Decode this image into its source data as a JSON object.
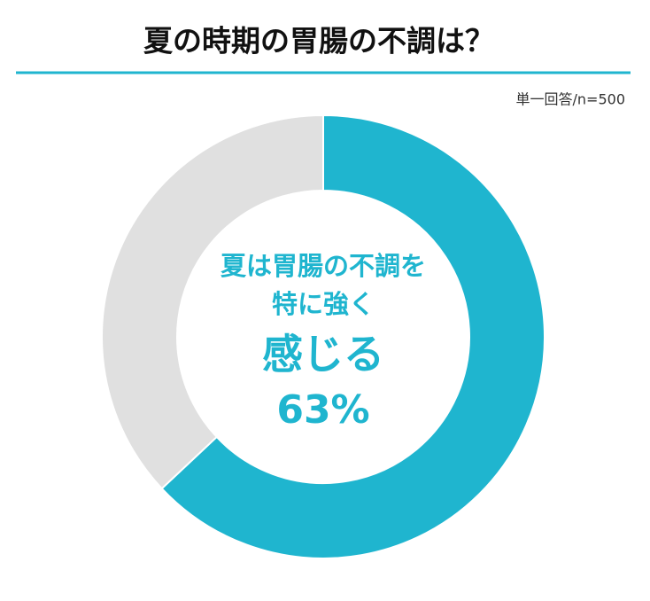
{
  "chart_data": {
    "type": "donut",
    "title": "夏の時期の胃腸の不調は？",
    "subtitle": "単一回答/n=500",
    "annotations": [
      "夏は胃腸の不調を",
      "特に強く",
      "感じる"
    ],
    "categories": [
      null,
      null
    ],
    "values": [
      63,
      37
    ],
    "value_labels": [
      "63%",
      null
    ],
    "colors": [
      "#1fb5cf",
      "#e0e0e0"
    ]
  }
}
